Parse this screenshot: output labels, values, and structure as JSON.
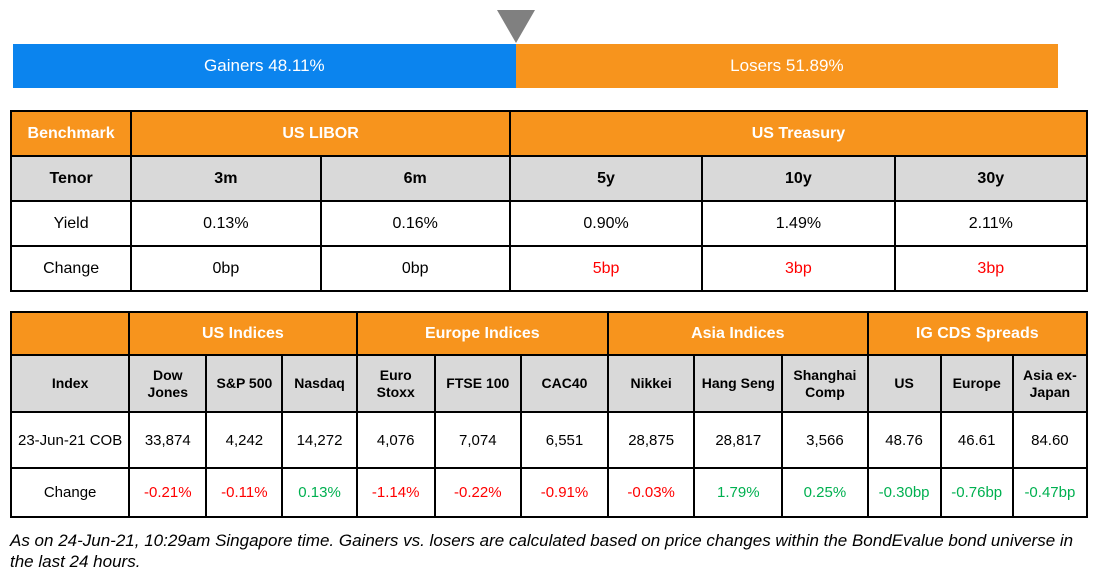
{
  "colors": {
    "accent_blue": "#0b84ee",
    "accent_orange": "#f7941d",
    "subheader_gray": "#d9d9d9",
    "negative_red": "#ff0000",
    "positive_green": "#00b050",
    "pointer_gray": "#808080",
    "border_black": "#000000"
  },
  "chart_data": [
    {
      "type": "bar",
      "name": "gainers-vs-losers",
      "orientation": "horizontal-stacked",
      "unit": "%",
      "segments": [
        {
          "category": "Gainers",
          "value": 48.11,
          "label": "Gainers 48.11%",
          "color": "#0b84ee"
        },
        {
          "category": "Losers",
          "value": 51.89,
          "label": "Losers 51.89%",
          "color": "#f7941d"
        }
      ]
    },
    {
      "type": "table",
      "name": "benchmark",
      "corner_label": "Benchmark",
      "column_groups": [
        {
          "label": "US LIBOR",
          "span": 2
        },
        {
          "label": "US Treasury",
          "span": 3
        }
      ],
      "tenor_row_label": "Tenor",
      "columns": [
        "3m",
        "6m",
        "5y",
        "10y",
        "30y"
      ],
      "rows": [
        {
          "label": "Yield",
          "values": [
            "0.13%",
            "0.16%",
            "0.90%",
            "1.49%",
            "2.11%"
          ],
          "text_colors": [
            "#000000",
            "#000000",
            "#000000",
            "#000000",
            "#000000"
          ]
        },
        {
          "label": "Change",
          "values": [
            "0bp",
            "0bp",
            "5bp",
            "3bp",
            "3bp"
          ],
          "text_colors": [
            "#000000",
            "#000000",
            "#ff0000",
            "#ff0000",
            "#ff0000"
          ]
        }
      ]
    },
    {
      "type": "table",
      "name": "indices",
      "corner_label": "",
      "index_row_label": "Index",
      "column_groups": [
        {
          "label": "US Indices",
          "span": 3
        },
        {
          "label": "Europe Indices",
          "span": 3
        },
        {
          "label": "Asia Indices",
          "span": 3
        },
        {
          "label": "IG CDS Spreads",
          "span": 3
        }
      ],
      "columns": [
        "Dow Jones",
        "S&P 500",
        "Nasdaq",
        "Euro Stoxx",
        "FTSE 100",
        "CAC40",
        "Nikkei",
        "Hang Seng",
        "Shanghai Comp",
        "US",
        "Europe",
        "Asia ex-Japan"
      ],
      "rows": [
        {
          "label": "23-Jun-21 COB",
          "values": [
            "33,874",
            "4,242",
            "14,272",
            "4,076",
            "7,074",
            "6,551",
            "28,875",
            "28,817",
            "3,566",
            "48.76",
            "46.61",
            "84.60"
          ],
          "text_colors": [
            "#000000",
            "#000000",
            "#000000",
            "#000000",
            "#000000",
            "#000000",
            "#000000",
            "#000000",
            "#000000",
            "#000000",
            "#000000",
            "#000000"
          ]
        },
        {
          "label": "Change",
          "values": [
            "-0.21%",
            "-0.11%",
            "0.13%",
            "-1.14%",
            "-0.22%",
            "-0.91%",
            "-0.03%",
            "1.79%",
            "0.25%",
            "-0.30bp",
            "-0.76bp",
            "-0.47bp"
          ],
          "text_colors": [
            "#ff0000",
            "#ff0000",
            "#00b050",
            "#ff0000",
            "#ff0000",
            "#ff0000",
            "#ff0000",
            "#00b050",
            "#00b050",
            "#00b050",
            "#00b050",
            "#00b050"
          ]
        }
      ]
    }
  ],
  "footnote": "As on 24-Jun-21, 10:29am Singapore time. Gainers vs. losers are calculated based on price changes within the BondEvalue bond universe in the last 24 hours."
}
